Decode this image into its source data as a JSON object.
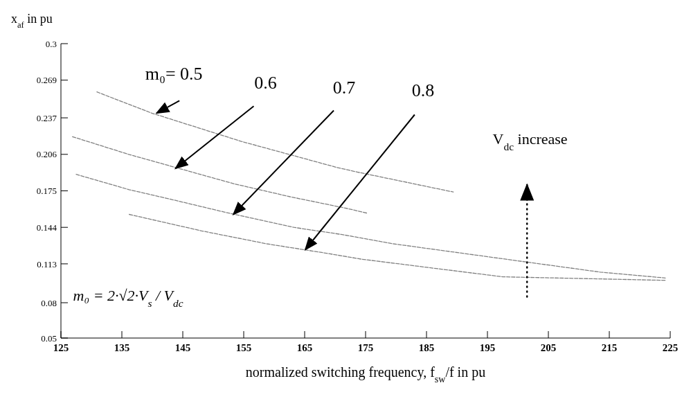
{
  "chart_data": {
    "type": "line",
    "xlabel": "normalized switching frequency, f$_{sw}$/f in pu",
    "ylabel": "x$_{af}$ in pu",
    "xlim": [
      125,
      225
    ],
    "xticks": [
      125,
      135,
      145,
      155,
      165,
      175,
      185,
      195,
      205,
      215,
      225
    ],
    "ylim": [
      0.05,
      0.3
    ],
    "yticks": [
      0.05,
      0.08,
      0.113,
      0.144,
      0.175,
      0.206,
      0.237,
      0.269,
      0.3
    ],
    "grid": false,
    "marker": "none",
    "line_style": "dashed",
    "series": [
      {
        "color": "#808080",
        "x": [
          130.9,
          139.9,
          154.6,
          170.2,
          173.6,
          189.4
        ],
        "values": [
          0.259,
          0.241,
          0.217,
          0.195,
          0.191,
          0.174
        ]
      },
      {
        "color": "#808080",
        "x": [
          126.9,
          136.1,
          153.4,
          162.6,
          172.0,
          175.3
        ],
        "values": [
          0.221,
          0.206,
          0.181,
          0.17,
          0.16,
          0.156
        ]
      },
      {
        "color": "#808080",
        "x": [
          127.5,
          136.2,
          142.9,
          151.8,
          163.2,
          171.0,
          179.6,
          213.5,
          224.2
        ],
        "values": [
          0.189,
          0.176,
          0.168,
          0.157,
          0.144,
          0.138,
          0.13,
          0.106,
          0.101
        ]
      },
      {
        "color": "#808080",
        "x": [
          136.2,
          148.1,
          158.8,
          168.6,
          174.3,
          197.5,
          224.2
        ],
        "values": [
          0.155,
          0.141,
          0.13,
          0.122,
          0.117,
          0.102,
          0.099
        ]
      }
    ],
    "annotations": [
      {
        "text": "m₀= 0.5",
        "x": 140.7,
        "y": 0.241
      },
      {
        "text": "0.6",
        "x": 143.8,
        "y": 0.194
      },
      {
        "text": "0.7",
        "x": 153.3,
        "y": 0.155
      },
      {
        "text": "0.8",
        "x": 165.1,
        "y": 0.125
      },
      "V$_{dc}$ increase",
      "m₀ = 2·√2·V$_{s}$ / V$_{dc}$"
    ]
  }
}
